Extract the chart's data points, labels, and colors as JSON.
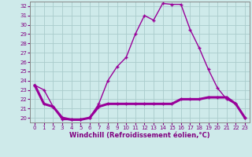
{
  "title": "Windchill (Refroidissement éolien,°C)",
  "hours": [
    0,
    1,
    2,
    3,
    4,
    5,
    6,
    7,
    8,
    9,
    10,
    11,
    12,
    13,
    14,
    15,
    16,
    17,
    18,
    19,
    20,
    21,
    22,
    23
  ],
  "temp": [
    23.5,
    23.0,
    21.2,
    19.8,
    19.8,
    19.8,
    20.0,
    21.5,
    24.0,
    25.5,
    26.5,
    29.0,
    31.0,
    30.5,
    32.3,
    32.2,
    32.2,
    29.5,
    27.5,
    25.2,
    23.2,
    22.0,
    21.5,
    20.0
  ],
  "windchill": [
    23.5,
    21.5,
    21.2,
    20.0,
    19.8,
    19.8,
    20.0,
    21.2,
    21.5,
    21.5,
    21.5,
    21.5,
    21.5,
    21.5,
    21.5,
    21.5,
    22.0,
    22.0,
    22.0,
    22.2,
    22.2,
    22.2,
    21.5,
    20.0
  ],
  "line_color": "#990099",
  "bg_color": "#ceeaea",
  "grid_color": "#aacccc",
  "ylim_min": 19.5,
  "ylim_max": 32.5,
  "yticks": [
    20,
    21,
    22,
    23,
    24,
    25,
    26,
    27,
    28,
    29,
    30,
    31,
    32
  ],
  "xlabel_color": "#800080",
  "tick_color": "#800080"
}
